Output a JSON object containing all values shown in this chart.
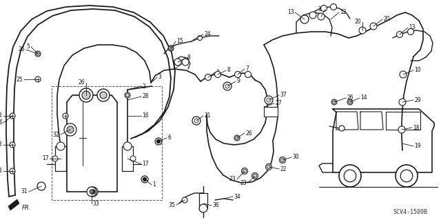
{
  "bg_color": "#ffffff",
  "diagram_code": "SCV4-1500B",
  "fig_width": 6.4,
  "fig_height": 3.19,
  "dpi": 100,
  "line_color": "#1a1a1a",
  "line_width": 1.0,
  "label_fontsize": 5.5,
  "label_color": "#111111"
}
